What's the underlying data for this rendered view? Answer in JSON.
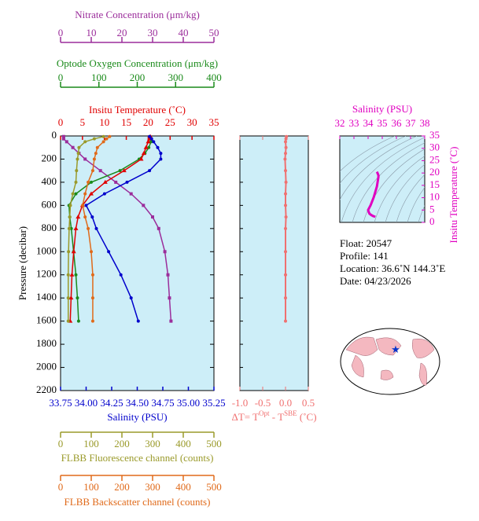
{
  "chart_data": [
    {
      "type": "profile",
      "y_label": "Pressure (decibar)",
      "y_inverted": true,
      "ylim": [
        0,
        2200
      ],
      "yticks": [
        0,
        200,
        400,
        600,
        800,
        1000,
        1200,
        1400,
        1600,
        1800,
        2000,
        2200
      ],
      "y": [
        5,
        25,
        50,
        100,
        150,
        200,
        300,
        400,
        500,
        600,
        700,
        800,
        1000,
        1200,
        1400,
        1600
      ],
      "axes": [
        {
          "label": "Nitrate Concentration (μm/kg)",
          "side": "top",
          "color": "#9b2d9b",
          "marker": "square",
          "xlim": [
            0,
            50
          ],
          "xticks": [
            0,
            10,
            20,
            30,
            40,
            50
          ],
          "values": [
            1,
            1,
            2,
            4,
            6,
            8,
            13,
            18,
            23,
            27,
            30,
            32,
            34,
            35,
            35.5,
            36
          ]
        },
        {
          "label": "Optode Oxygen Concentration (μm/kg)",
          "side": "top",
          "color": "#1a8a1a",
          "marker": "circle",
          "xlim": [
            0,
            400
          ],
          "xticks": [
            0,
            100,
            200,
            300,
            400
          ],
          "values": [
            232,
            234,
            236,
            230,
            220,
            205,
            155,
            80,
            40,
            22,
            24,
            28,
            34,
            40,
            44,
            47
          ]
        },
        {
          "label": "Insitu Temperature (˚C)",
          "side": "top",
          "color": "#e00000",
          "marker": "triangle",
          "xlim": [
            0,
            35
          ],
          "xticks": [
            0,
            5,
            10,
            15,
            20,
            25,
            30,
            35
          ],
          "values": [
            20.5,
            20.3,
            20.0,
            19.5,
            19.0,
            18.4,
            14.5,
            10.2,
            7.0,
            5.0,
            4.0,
            3.5,
            3.0,
            2.6,
            2.4,
            2.2
          ]
        },
        {
          "label": "Salinity (PSU)",
          "side": "bottom",
          "color": "#0000cc",
          "marker": "circle",
          "xlim": [
            33.75,
            35.25
          ],
          "xticks": [
            {
              "value": 33.75,
              "label": "33.75"
            },
            {
              "value": 34.0,
              "label": "34.00"
            },
            34.25,
            {
              "value": 34.5,
              "label": "34.50"
            },
            34.75,
            {
              "value": 35.0,
              "label": "35.00"
            },
            35.25
          ],
          "values": [
            34.62,
            34.64,
            34.66,
            34.7,
            34.73,
            34.73,
            34.62,
            34.4,
            34.18,
            34.0,
            34.06,
            34.1,
            34.22,
            34.34,
            34.44,
            34.51
          ]
        },
        {
          "label": "FLBB Fluorescence channel (counts)",
          "side": "bottom",
          "color": "#9a9a2a",
          "marker": "circle",
          "xlim": [
            0,
            500
          ],
          "xticks": [
            0,
            100,
            200,
            300,
            400,
            500
          ],
          "values": [
            140,
            110,
            80,
            60,
            58,
            55,
            52,
            50,
            40,
            32,
            30,
            28,
            26,
            25,
            25,
            25
          ]
        },
        {
          "label": "FLBB Backscatter channel (counts)",
          "side": "bottom",
          "color": "#e06a1a",
          "marker": "circle",
          "xlim": [
            0,
            500
          ],
          "xticks": [
            0,
            100,
            200,
            300,
            400,
            500
          ],
          "values": [
            160,
            150,
            140,
            120,
            115,
            110,
            105,
            90,
            80,
            72,
            80,
            90,
            100,
            105,
            105,
            105
          ]
        }
      ]
    },
    {
      "type": "difference",
      "color": "#f07070",
      "x_label": [
        "ΔT= T",
        "Opt",
        " - T",
        "SBE",
        " (˚C)"
      ],
      "xlim": [
        -1.0,
        0.5
      ],
      "xticks": [
        {
          "value": -1.0,
          "label": "-1.0"
        },
        -0.5,
        {
          "value": 0.0,
          "label": "0.0"
        },
        0.5
      ],
      "values": [
        0.02,
        0.01,
        0.0,
        0.01,
        0.0,
        -0.01,
        0.0,
        0.01,
        0.0,
        0.0,
        0.01,
        0.0,
        0.0,
        0.0,
        0.0,
        0.0
      ]
    },
    {
      "type": "ts",
      "color": "#e000c0",
      "x_label": "Salinity (PSU)",
      "y_label": "Insitu Temperature (˚C)",
      "xlim": [
        32,
        38
      ],
      "xticks": [
        32,
        33,
        34,
        35,
        36,
        37,
        38
      ],
      "ylim": [
        0,
        35
      ],
      "yticks": [
        0,
        5,
        10,
        15,
        20,
        25,
        30,
        35
      ]
    }
  ],
  "info": {
    "lines": [
      "Float:  20547",
      "Profile:  141",
      "Location:  36.6˚N  144.3˚E",
      "Date:  04/23/2026"
    ]
  }
}
